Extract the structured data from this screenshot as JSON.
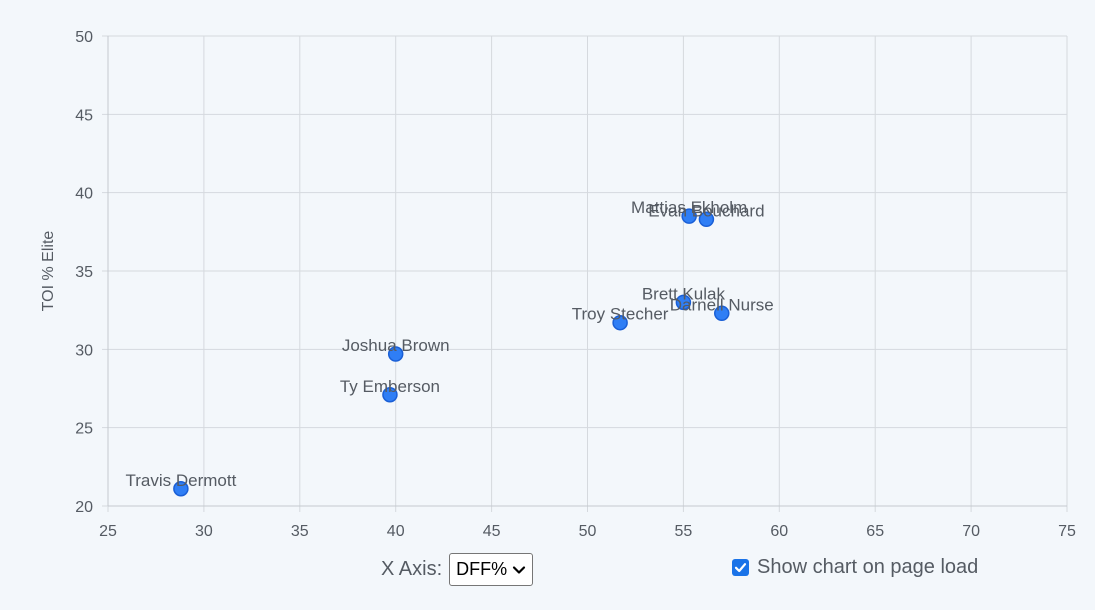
{
  "chart_data": {
    "type": "scatter",
    "title": "",
    "xlabel": "",
    "ylabel": "TOI % Elite",
    "xlim": [
      25,
      75
    ],
    "ylim": [
      20,
      50
    ],
    "xticks": [
      "25",
      "30",
      "35",
      "40",
      "45",
      "50",
      "55",
      "60",
      "65",
      "70",
      "75"
    ],
    "yticks": [
      "20",
      "25",
      "30",
      "35",
      "40",
      "45",
      "50"
    ],
    "grid": true,
    "point_color": "#2f7ef5",
    "point_border_color": "#1a5fd6",
    "points": [
      {
        "label": "Travis Dermott",
        "x": 28.8,
        "y": 21.1
      },
      {
        "label": "Ty Emberson",
        "x": 39.7,
        "y": 27.1
      },
      {
        "label": "Joshua Brown",
        "x": 40.0,
        "y": 29.7
      },
      {
        "label": "Troy Stecher",
        "x": 51.7,
        "y": 31.7
      },
      {
        "label": "Brett Kulak",
        "x": 55.0,
        "y": 33.0
      },
      {
        "label": "Darnell Nurse",
        "x": 57.0,
        "y": 32.3
      },
      {
        "label": "Mattias Ekholm",
        "x": 55.3,
        "y": 38.5
      },
      {
        "label": "Evan Bouchard",
        "x": 56.2,
        "y": 38.3
      }
    ]
  },
  "controls": {
    "x_axis_label": "X Axis:",
    "x_axis_selected": "DFF%",
    "show_chart_label": "Show chart on page load",
    "show_chart_checked": true
  }
}
